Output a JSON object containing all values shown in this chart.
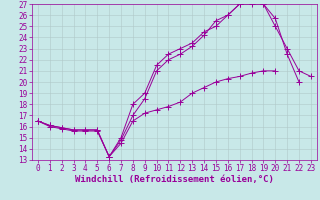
{
  "xlabel": "Windchill (Refroidissement éolien,°C)",
  "bg_color": "#c8e8e8",
  "line_color": "#990099",
  "grid_color": "#b0c8c8",
  "xlim": [
    -0.5,
    23.5
  ],
  "ylim": [
    13,
    27
  ],
  "xticks": [
    0,
    1,
    2,
    3,
    4,
    5,
    6,
    7,
    8,
    9,
    10,
    11,
    12,
    13,
    14,
    15,
    16,
    17,
    18,
    19,
    20,
    21,
    22,
    23
  ],
  "yticks": [
    13,
    14,
    15,
    16,
    17,
    18,
    19,
    20,
    21,
    22,
    23,
    24,
    25,
    26,
    27
  ],
  "line1_x": [
    0,
    1,
    2,
    3,
    4,
    5,
    6,
    7,
    8,
    9,
    10,
    11,
    12,
    13,
    14,
    15,
    16,
    17,
    18,
    19,
    20,
    21,
    22,
    23
  ],
  "line1_y": [
    16.5,
    16.0,
    15.8,
    15.6,
    15.6,
    15.6,
    13.3,
    15.0,
    18.0,
    19.0,
    21.5,
    22.5,
    23.0,
    23.5,
    24.5,
    25.0,
    26.0,
    27.0,
    27.0,
    27.0,
    25.0,
    23.0,
    21.0,
    20.5
  ],
  "line2_x": [
    0,
    1,
    2,
    3,
    4,
    5,
    6,
    7,
    8,
    9,
    10,
    11,
    12,
    13,
    14,
    15,
    16,
    17,
    18,
    19,
    20,
    21,
    22
  ],
  "line2_y": [
    16.5,
    16.1,
    15.9,
    15.7,
    15.7,
    15.7,
    13.3,
    14.8,
    17.0,
    18.5,
    21.0,
    22.0,
    22.5,
    23.2,
    24.2,
    25.5,
    26.0,
    27.0,
    27.2,
    27.0,
    25.7,
    22.5,
    20.0
  ],
  "line3_x": [
    0,
    1,
    2,
    3,
    4,
    5,
    6,
    7,
    8,
    9,
    10,
    11,
    12,
    13,
    14,
    15,
    16,
    17,
    18,
    19,
    20
  ],
  "line3_y": [
    16.5,
    16.1,
    15.9,
    15.7,
    15.7,
    15.7,
    13.3,
    14.5,
    16.5,
    17.2,
    17.5,
    17.8,
    18.2,
    19.0,
    19.5,
    20.0,
    20.3,
    20.5,
    20.8,
    21.0,
    21.0
  ],
  "tick_fontsize": 5.5,
  "xlabel_fontsize": 6.5,
  "marker_size": 2.5,
  "linewidth": 0.7
}
